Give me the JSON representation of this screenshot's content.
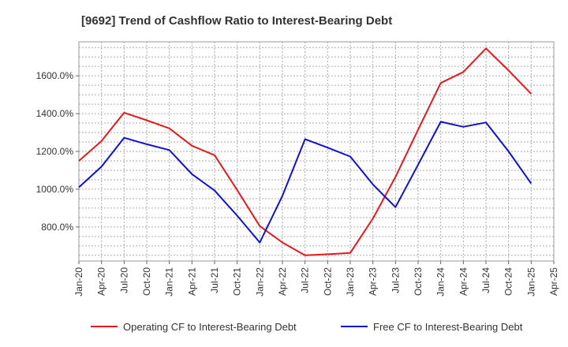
{
  "chart_data": {
    "type": "line",
    "title": "[9692]  Trend of Cashflow Ratio to Interest-Bearing Debt",
    "xlabel": "",
    "ylabel": "",
    "x": [
      "Jan-20",
      "Apr-20",
      "Jul-20",
      "Oct-20",
      "Jan-21",
      "Apr-21",
      "Jul-21",
      "Oct-21",
      "Jan-22",
      "Apr-22",
      "Jul-22",
      "Oct-22",
      "Jan-23",
      "Apr-23",
      "Jul-23",
      "Oct-23",
      "Jan-24",
      "Apr-24",
      "Jul-24",
      "Oct-24",
      "Jan-25",
      "Apr-25"
    ],
    "y_ticks": [
      800,
      1000,
      1200,
      1400,
      1600
    ],
    "y_tick_labels": [
      "800.0%",
      "1000.0%",
      "1200.0%",
      "1400.0%",
      "1600.0%"
    ],
    "ylim": [
      620,
      1780
    ],
    "grid": true,
    "legend_position": "bottom",
    "series": [
      {
        "name": "Operating CF to Interest-Bearing Debt",
        "color": "#e31a1c",
        "values": [
          1150,
          1255,
          1405,
          1365,
          1322,
          1230,
          1180,
          995,
          805,
          718,
          650,
          656,
          663,
          845,
          1065,
          1315,
          1562,
          1620,
          1745,
          1628,
          1505,
          null
        ]
      },
      {
        "name": "Free CF to Interest-Bearing Debt",
        "color": "#1010d0",
        "values": [
          1010,
          1120,
          1272,
          1238,
          1207,
          1080,
          993,
          860,
          718,
          965,
          1265,
          1220,
          1173,
          1025,
          905,
          1130,
          1357,
          1330,
          1353,
          1200,
          1030,
          null
        ]
      }
    ]
  }
}
